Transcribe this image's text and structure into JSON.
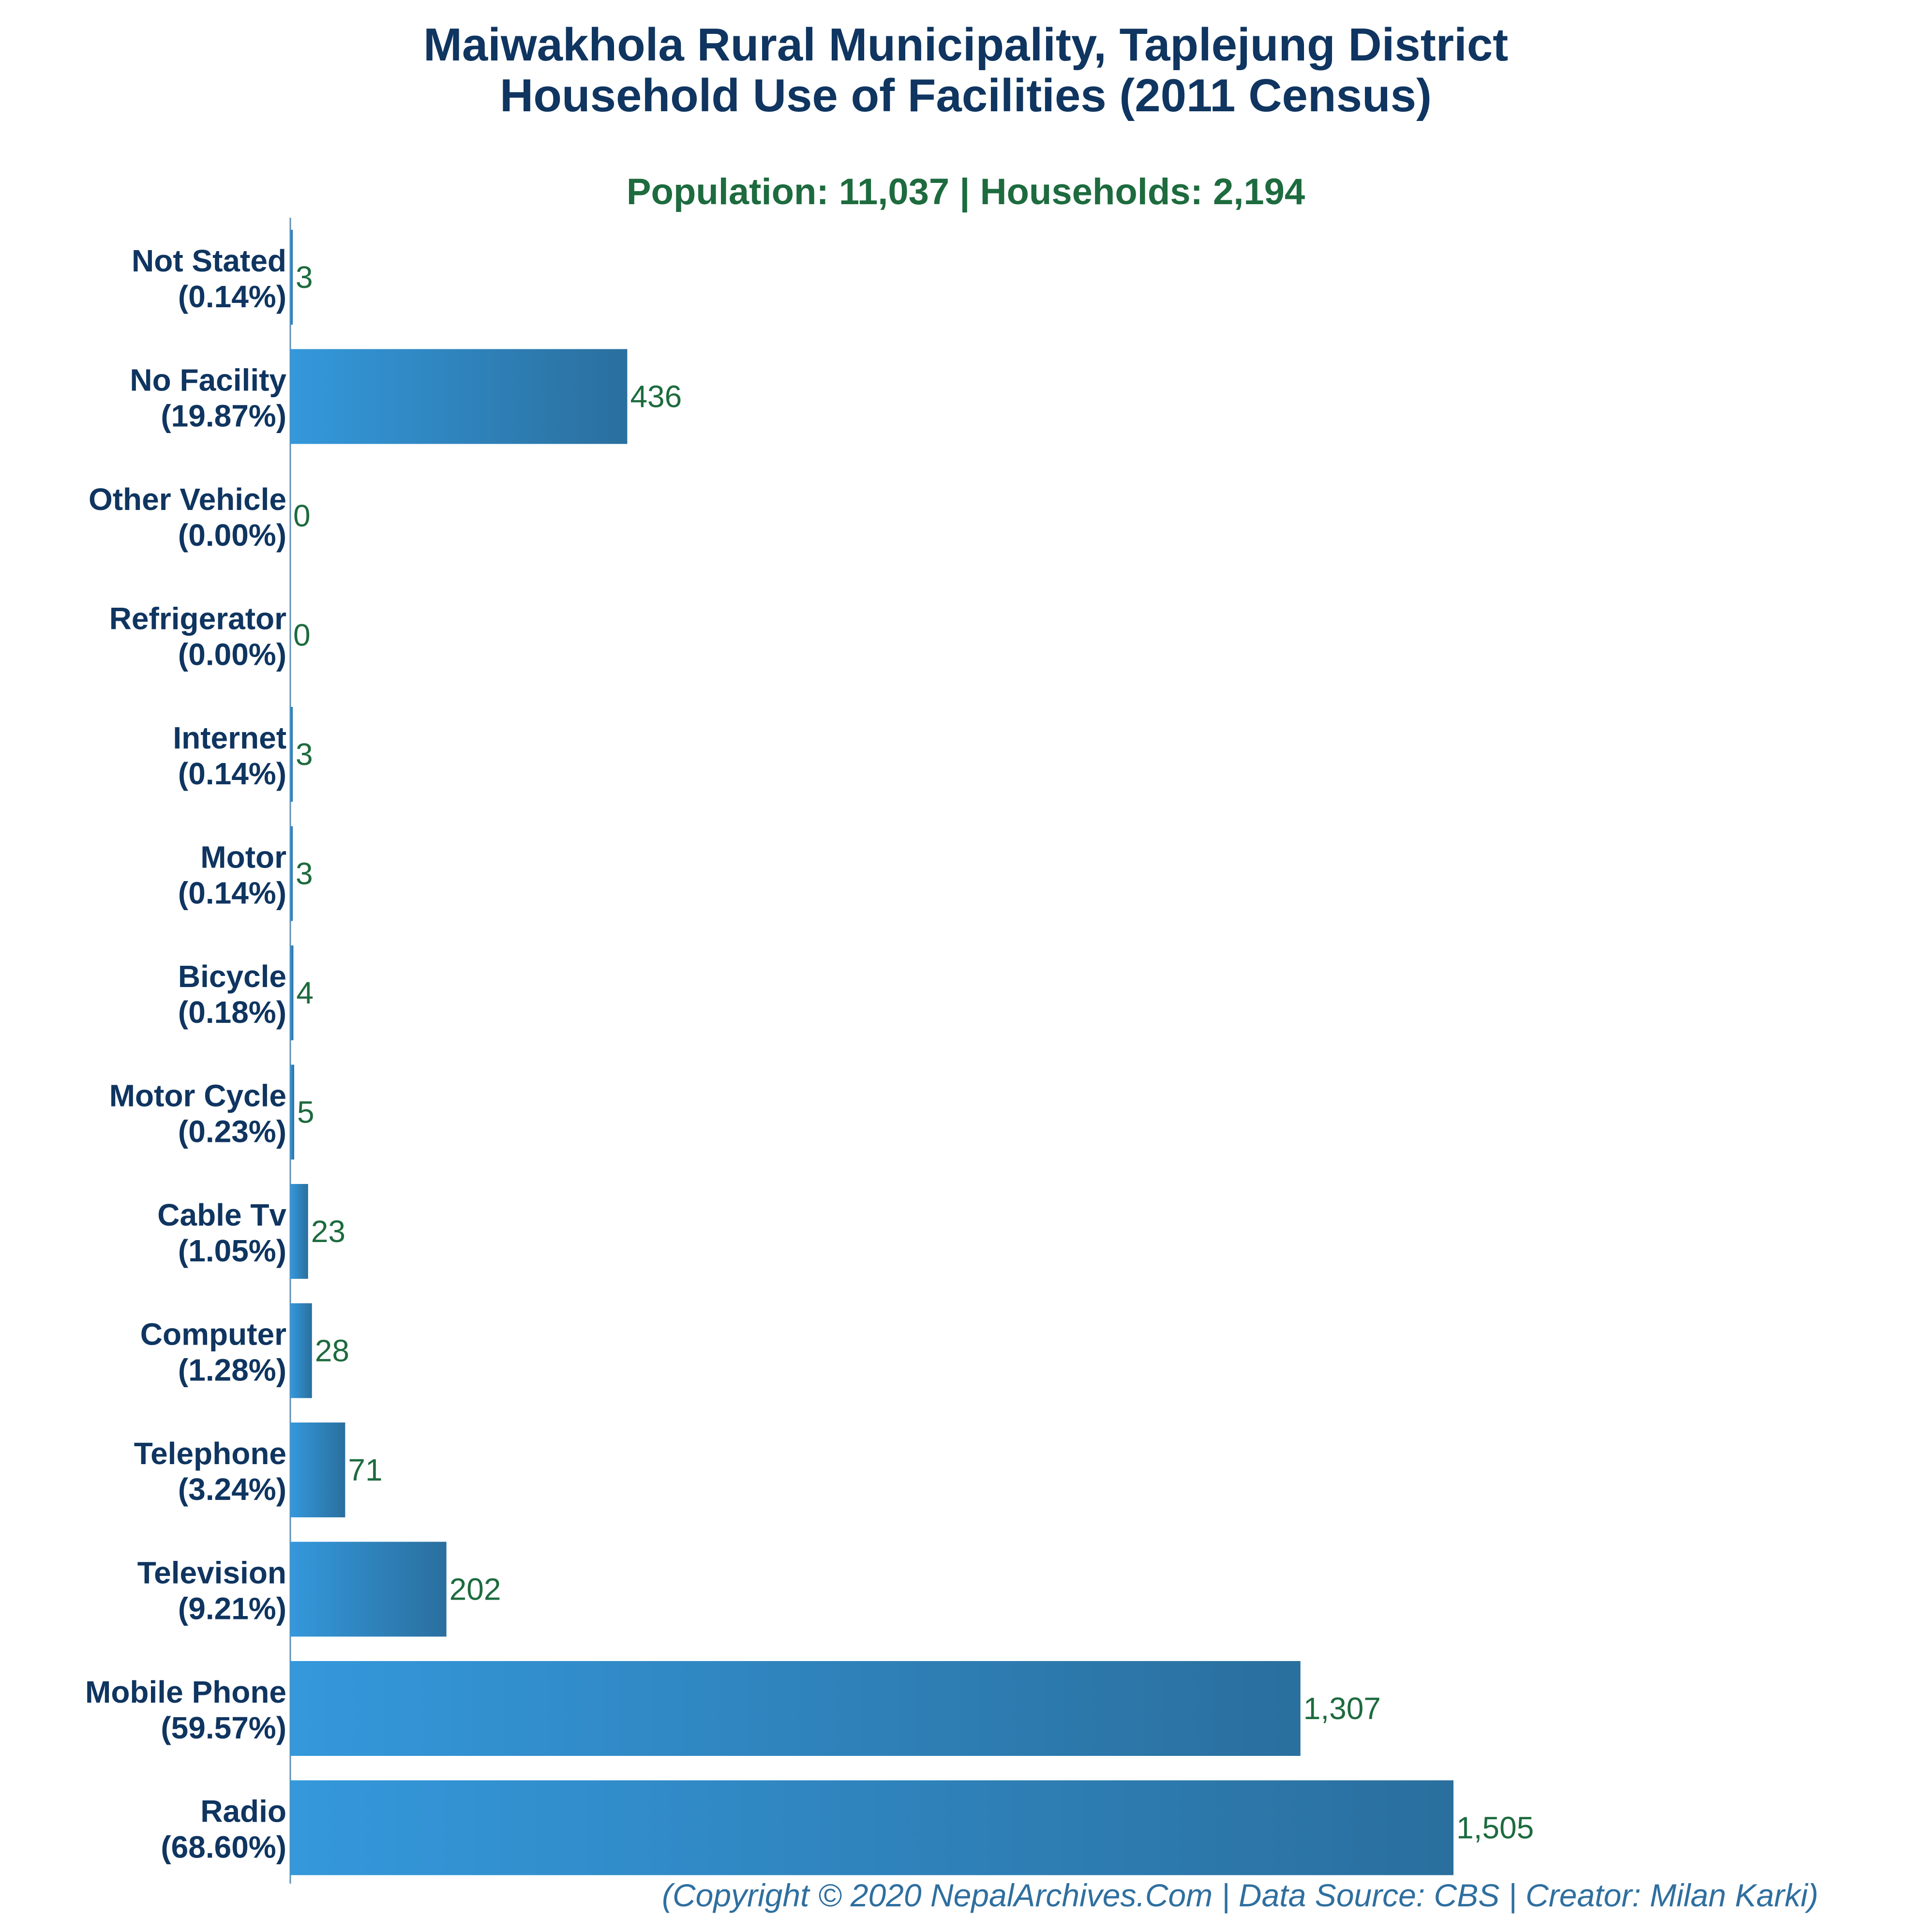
{
  "chart_data": {
    "type": "bar",
    "orientation": "horizontal",
    "title": "Maiwakhola Rural Municipality, Taplejung District",
    "title_line2": "Household Use of Facilities (2011 Census)",
    "subtitle": "Population: 11,037 | Households: 2,194",
    "footer": "(Copyright © 2020 NepalArchives.Com | Data Source: CBS | Creator: Milan Karki)",
    "categories": [
      {
        "name": "Not Stated",
        "pct": "(0.14%)",
        "value": 3,
        "value_label": "3"
      },
      {
        "name": "No Facility",
        "pct": "(19.87%)",
        "value": 436,
        "value_label": "436"
      },
      {
        "name": "Other Vehicle",
        "pct": "(0.00%)",
        "value": 0,
        "value_label": "0"
      },
      {
        "name": "Refrigerator",
        "pct": "(0.00%)",
        "value": 0,
        "value_label": "0"
      },
      {
        "name": "Internet",
        "pct": "(0.14%)",
        "value": 3,
        "value_label": "3"
      },
      {
        "name": "Motor",
        "pct": "(0.14%)",
        "value": 3,
        "value_label": "3"
      },
      {
        "name": "Bicycle",
        "pct": "(0.18%)",
        "value": 4,
        "value_label": "4"
      },
      {
        "name": "Motor Cycle",
        "pct": "(0.23%)",
        "value": 5,
        "value_label": "5"
      },
      {
        "name": "Cable Tv",
        "pct": "(1.05%)",
        "value": 23,
        "value_label": "23"
      },
      {
        "name": "Computer",
        "pct": "(1.28%)",
        "value": 28,
        "value_label": "28"
      },
      {
        "name": "Telephone",
        "pct": "(3.24%)",
        "value": 71,
        "value_label": "71"
      },
      {
        "name": "Television",
        "pct": "(9.21%)",
        "value": 202,
        "value_label": "202"
      },
      {
        "name": "Mobile Phone",
        "pct": "(59.57%)",
        "value": 1307,
        "value_label": "1,307"
      },
      {
        "name": "Radio",
        "pct": "(68.60%)",
        "value": 1505,
        "value_label": "1,505"
      }
    ],
    "xlim": [
      0,
      1505
    ],
    "grid": false,
    "legend": "none",
    "colors": {
      "bar_start": "#3498db",
      "bar_end": "#2a6f9e",
      "title": "#0f3560",
      "values": "#1d6b3e",
      "footer": "#2f6f9f",
      "axis": "#5f8fb5"
    }
  }
}
